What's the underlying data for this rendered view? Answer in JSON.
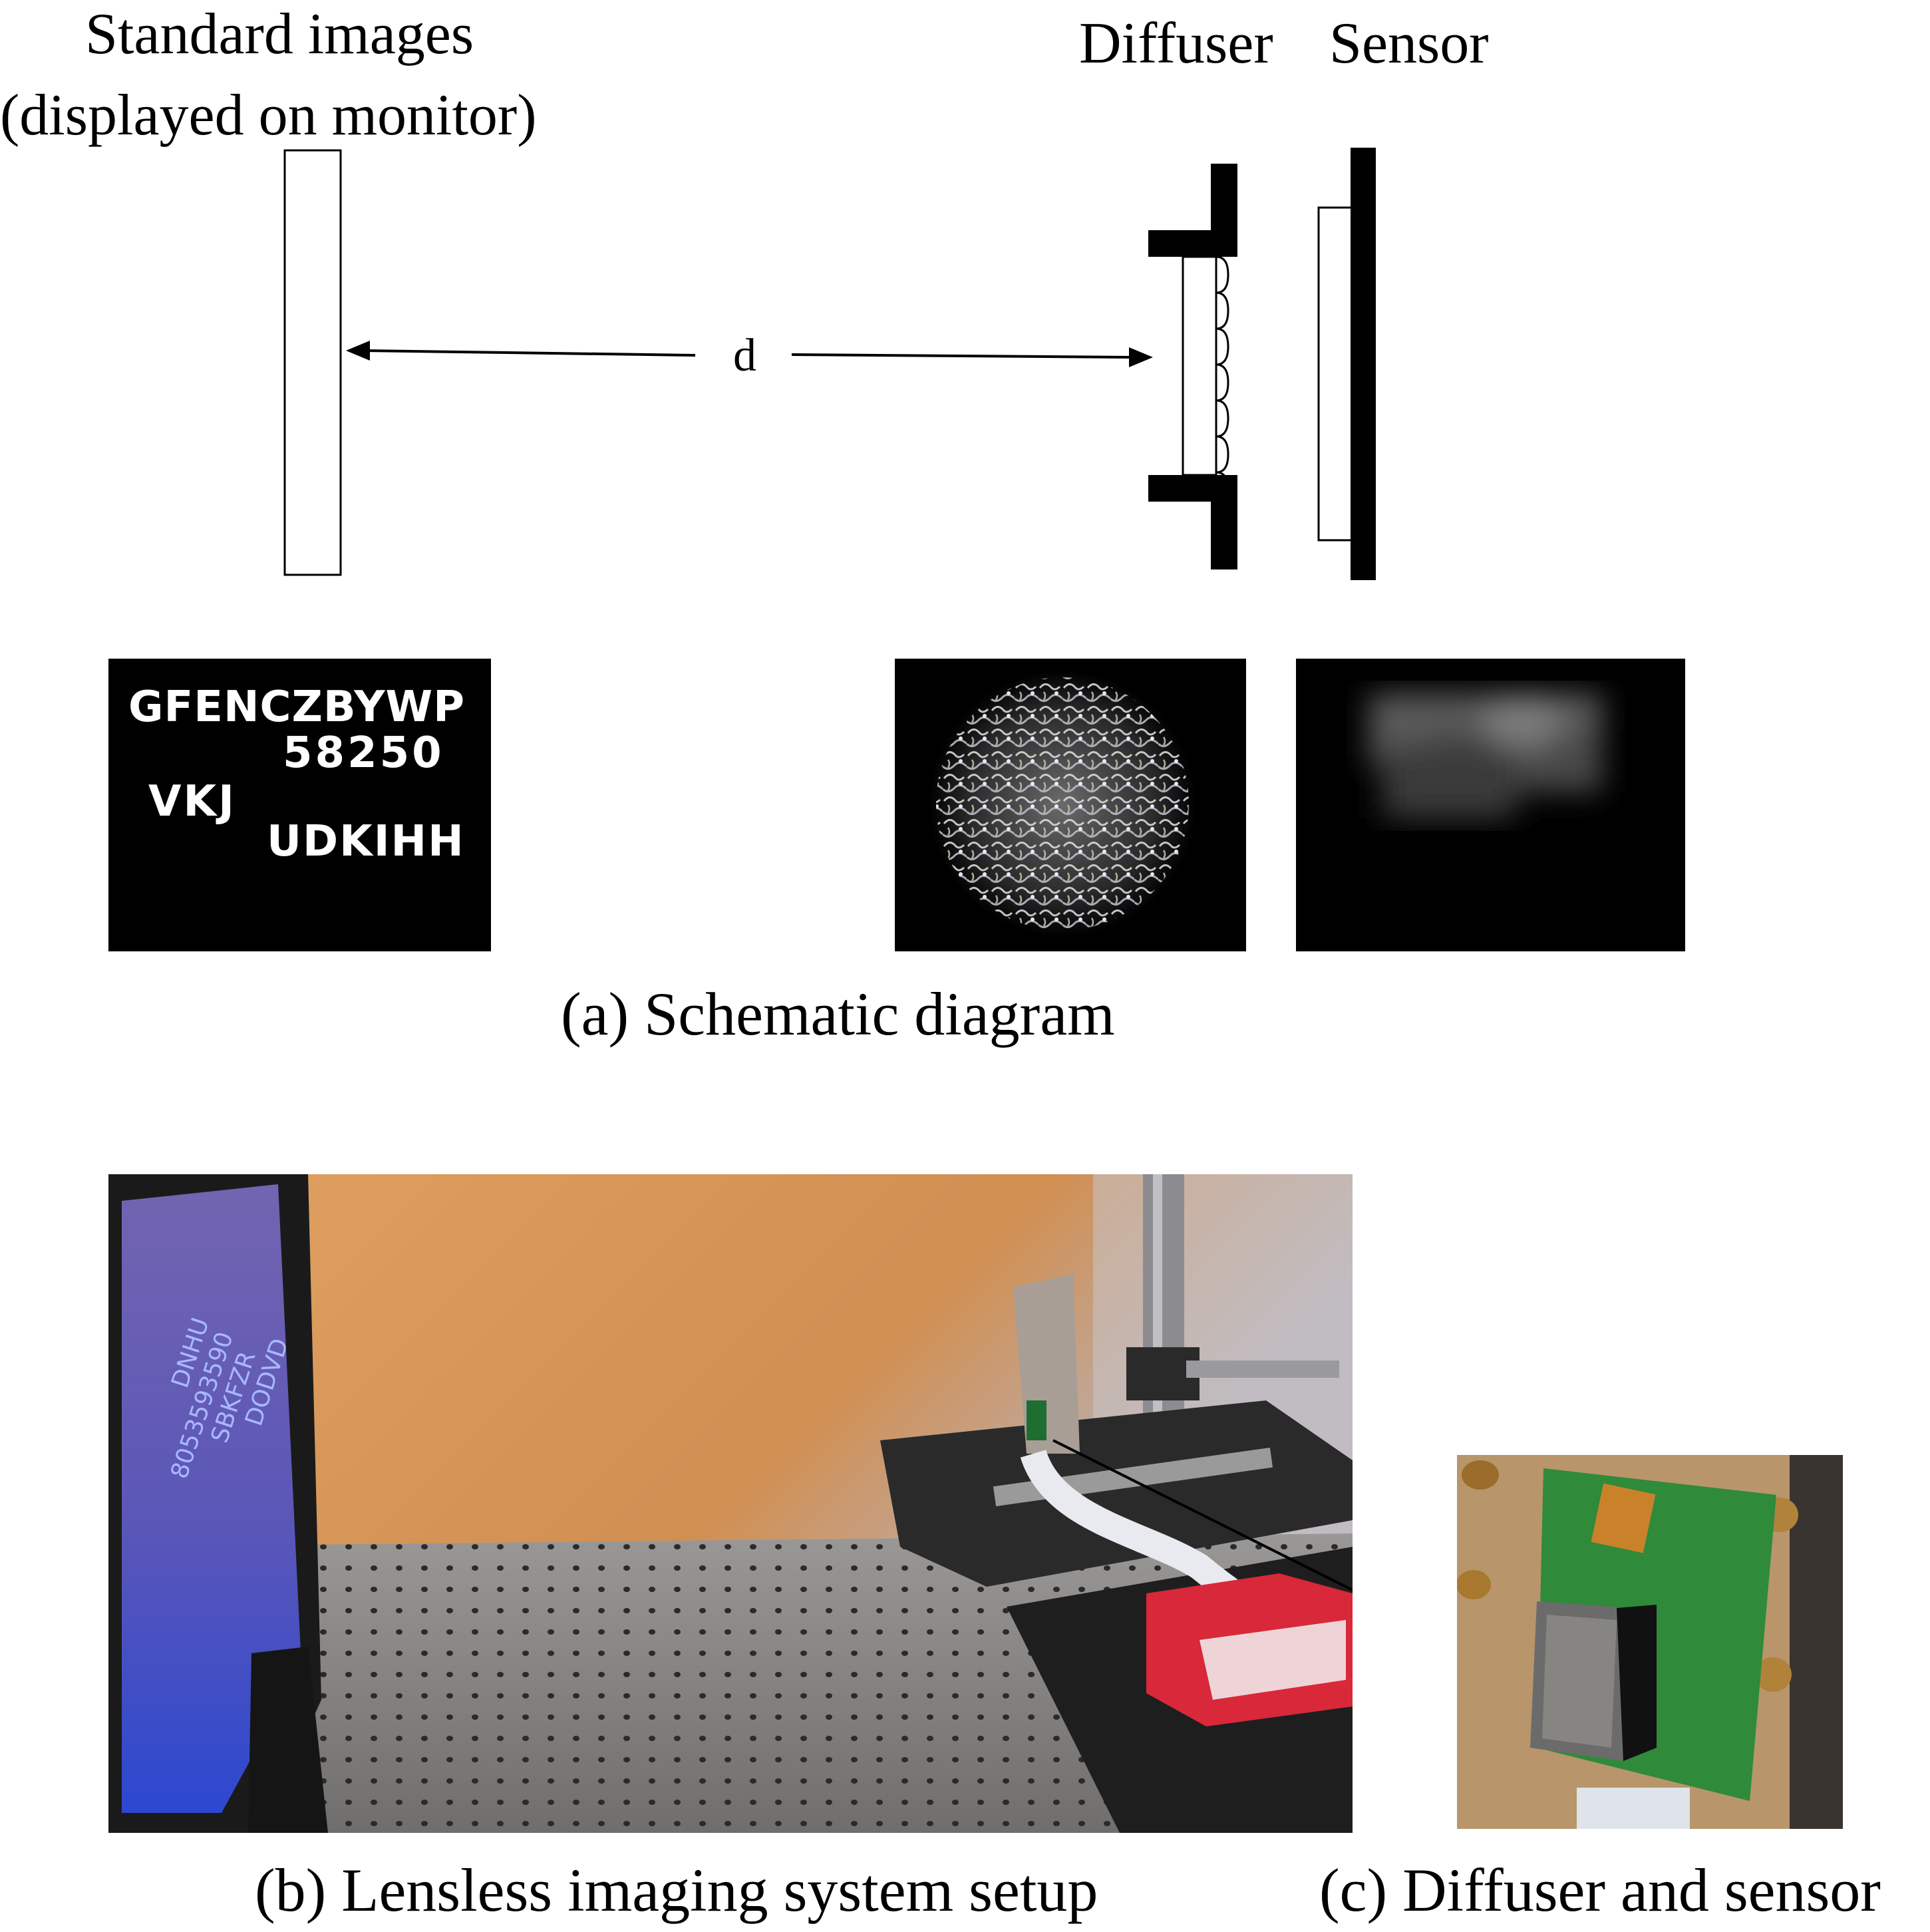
{
  "schematic": {
    "monitor_label_line1": "Standard images",
    "monitor_label_line2": "(displayed on monitor)",
    "diffuser_label": "Diffuser",
    "sensor_label": "Sensor",
    "distance_label": "d",
    "caption": "(a) Schematic diagram"
  },
  "sample_image": {
    "row1": "GFENCZBYWP",
    "row2": "58250",
    "row3": "VKJ",
    "row4": "UDKIHH"
  },
  "setup_photo": {
    "caption": "(b) Lensless imaging system setup",
    "monitor_text": [
      "DNHU",
      "8053593590",
      "SBKFZR",
      "DODVD"
    ]
  },
  "closeup_photo": {
    "caption": "(c) Diffuser and sensor"
  },
  "colors": {
    "wall": "#d99a5c",
    "table": "#8a8a88",
    "board": "#2e8b3c",
    "case": "#d8283a",
    "monitor_screen": "#3a4fb8"
  }
}
